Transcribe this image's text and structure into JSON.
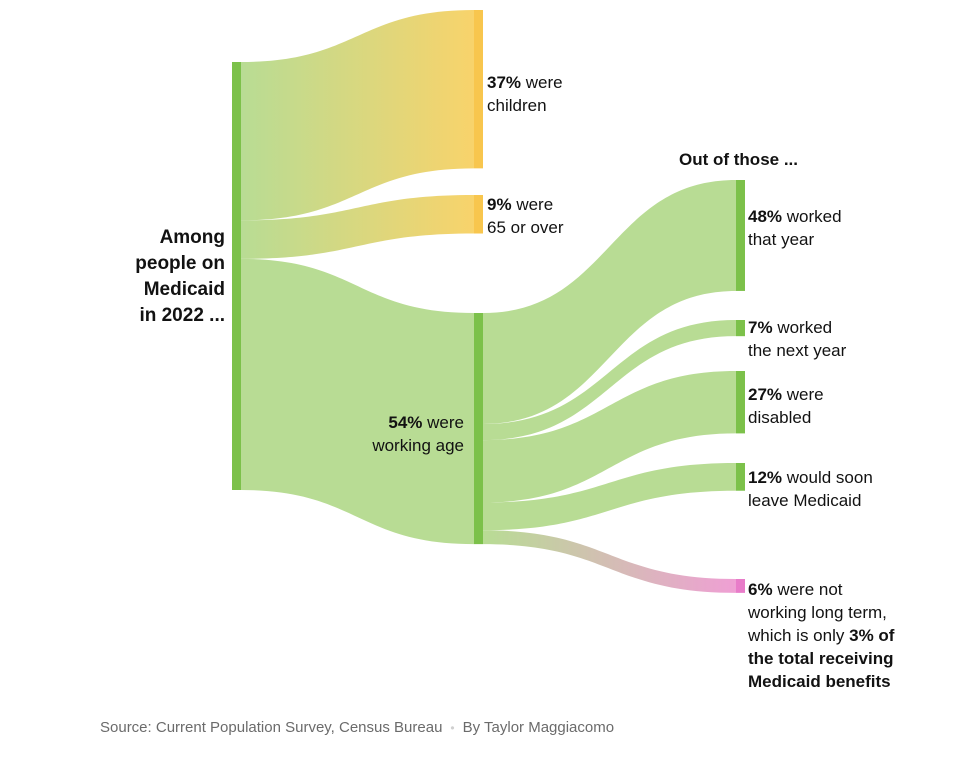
{
  "chart_data": {
    "type": "sankey",
    "root": {
      "name": "Among people on Medicaid in 2022 ...",
      "value": 100
    },
    "level1": [
      {
        "id": "children",
        "value": 37,
        "pct": "37%",
        "text": "were children",
        "color": "#f8d36b"
      },
      {
        "id": "seniors",
        "value": 9,
        "pct": "9%",
        "text": "were 65 or over",
        "color": "#f8d36b"
      },
      {
        "id": "working_age",
        "value": 54,
        "pct": "54%",
        "text": "were working age",
        "color": "#b8dc94"
      }
    ],
    "level2_header": "Out of those ...",
    "level2_parent": "working_age",
    "level2": [
      {
        "id": "worked",
        "value": 48,
        "pct": "48%",
        "line1": "worked",
        "line2": "that year",
        "color": "#b8dc94"
      },
      {
        "id": "next_year",
        "value": 7,
        "pct": "7%",
        "line1": "worked",
        "line2": "the next year",
        "color": "#b8dc94"
      },
      {
        "id": "disabled",
        "value": 27,
        "pct": "27%",
        "line1": "were",
        "line2": "disabled",
        "color": "#b8dc94"
      },
      {
        "id": "leave",
        "value": 12,
        "pct": "12%",
        "line1": "would soon",
        "line2": "leave Medicaid",
        "color": "#b8dc94"
      },
      {
        "id": "not_working",
        "value": 6,
        "pct": "6%",
        "line1": "were not",
        "line2": "working long term,",
        "line3_pre": "which is only",
        "line3_bold": "3% of",
        "line4": "the total receiving",
        "line5": "Medicaid benefits",
        "color": "#ef9fd4"
      }
    ],
    "colors": {
      "bar_green": "#7cc14a",
      "bar_yellow": "#f8c64e",
      "bar_pink": "#e87cc9",
      "flow_green": "#b8dc94",
      "flow_yellow": "#f8d36b",
      "flow_pink": "#ef9fd4"
    }
  },
  "labels": {
    "root_line1": "Among",
    "root_line2": "people on",
    "root_line3": "Medicaid",
    "root_line4": "in 2022 ...",
    "children_pct": "37%",
    "children_l1": "were",
    "children_l2": "children",
    "seniors_pct": "9%",
    "seniors_l1": "were",
    "seniors_l2": "65 or over",
    "work_pct": "54%",
    "work_l1": "were",
    "work_l2": "working age",
    "header": "Out of those ...",
    "worked_pct": "48%",
    "worked_l1": "worked",
    "worked_l2": "that year",
    "next_pct": "7%",
    "next_l1": "worked",
    "next_l2": "the next year",
    "dis_pct": "27%",
    "dis_l1": "were",
    "dis_l2": "disabled",
    "leave_pct": "12%",
    "leave_l1": "would soon",
    "leave_l2": "leave Medicaid",
    "nw_pct": "6%",
    "nw_l1": "were not",
    "nw_l2": "working long term,",
    "nw_l3": "which is only",
    "nw_l3b": "3% of",
    "nw_l4": "the total receiving",
    "nw_l5": "Medicaid benefits"
  },
  "footer": {
    "source": "Source: Current Population Survey, Census Bureau",
    "separator": "•",
    "byline": "By Taylor Maggiacomo"
  }
}
